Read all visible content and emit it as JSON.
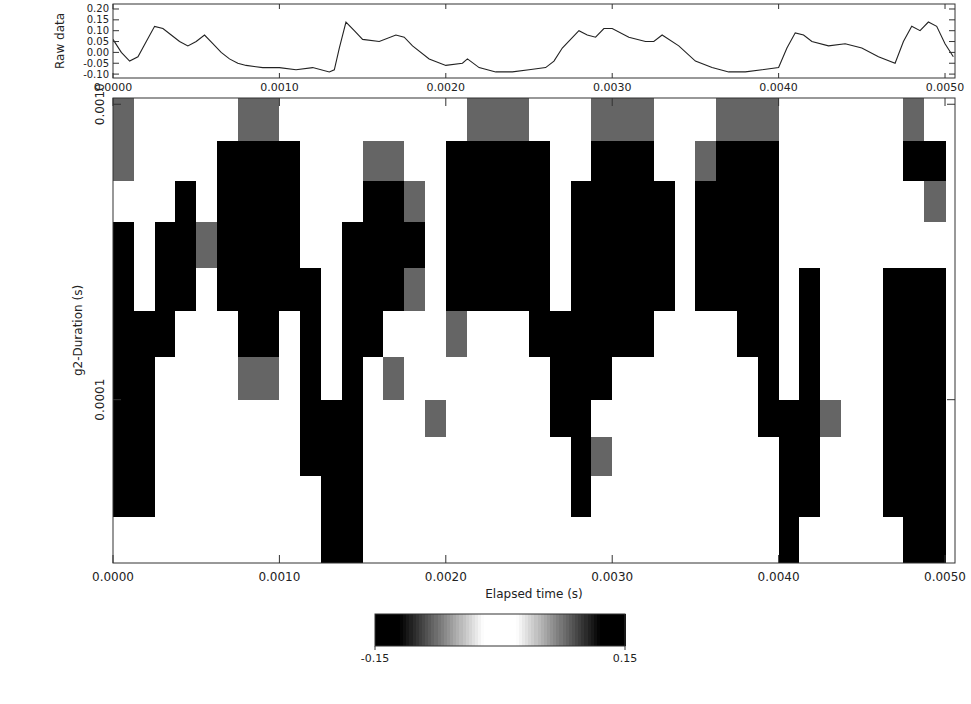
{
  "chart_data": [
    {
      "type": "line",
      "y_label": "Raw data",
      "color": "#222222",
      "xlim": [
        0,
        0.00506
      ],
      "ylim": [
        -0.118,
        0.223
      ],
      "xticks": [
        {
          "value": 0,
          "label": "0.0000"
        },
        {
          "value": 0.001,
          "label": "0.0010"
        },
        {
          "value": 0.002,
          "label": "0.0020"
        },
        {
          "value": 0.003,
          "label": "0.0030"
        },
        {
          "value": 0.004,
          "label": "0.0040"
        },
        {
          "value": 0.005,
          "label": "0.0050"
        }
      ],
      "yticks": [
        {
          "value": 0.2,
          "label": "0.20"
        },
        0.15,
        {
          "value": 0.1,
          "label": "0.10"
        },
        0.05,
        {
          "value": 0,
          "label": "0.00"
        },
        -0.05,
        {
          "value": -0.1,
          "label": "-0.10"
        }
      ],
      "x": [
        0,
        5e-05,
        0.0001,
        0.00015,
        0.0002,
        0.00025,
        0.0003,
        0.00035,
        0.0004,
        0.00045,
        0.0005,
        0.00055,
        0.0006,
        0.00065,
        0.0007,
        0.00075,
        0.0008,
        0.0009,
        0.001,
        0.0011,
        0.0012,
        0.0013,
        0.00133,
        0.00136,
        0.0014,
        0.00145,
        0.0015,
        0.0016,
        0.0017,
        0.00175,
        0.0018,
        0.0019,
        0.002,
        0.0021,
        0.00213,
        0.0022,
        0.0023,
        0.0024,
        0.0025,
        0.0026,
        0.00265,
        0.0027,
        0.0028,
        0.00285,
        0.0029,
        0.00295,
        0.003,
        0.0031,
        0.0032,
        0.00325,
        0.0033,
        0.0034,
        0.0035,
        0.0036,
        0.0037,
        0.0038,
        0.0039,
        0.004,
        0.00405,
        0.0041,
        0.00415,
        0.0042,
        0.0043,
        0.0044,
        0.0045,
        0.0046,
        0.0047,
        0.00475,
        0.0048,
        0.00485,
        0.0049,
        0.00495,
        0.005,
        0.00505
      ],
      "values": [
        0.06,
        0.0,
        -0.04,
        -0.02,
        0.05,
        0.12,
        0.11,
        0.08,
        0.05,
        0.03,
        0.05,
        0.08,
        0.04,
        0.0,
        -0.03,
        -0.05,
        -0.06,
        -0.07,
        -0.07,
        -0.08,
        -0.07,
        -0.09,
        -0.08,
        0.02,
        0.14,
        0.1,
        0.06,
        0.05,
        0.08,
        0.07,
        0.03,
        -0.03,
        -0.06,
        -0.05,
        -0.03,
        -0.07,
        -0.09,
        -0.09,
        -0.08,
        -0.07,
        -0.04,
        0.02,
        0.1,
        0.08,
        0.07,
        0.11,
        0.11,
        0.07,
        0.05,
        0.05,
        0.08,
        0.03,
        -0.04,
        -0.07,
        -0.09,
        -0.09,
        -0.08,
        -0.07,
        0.02,
        0.09,
        0.08,
        0.05,
        0.03,
        0.04,
        0.02,
        -0.02,
        -0.05,
        0.05,
        0.12,
        0.1,
        0.14,
        0.12,
        0.04,
        -0.02
      ]
    },
    {
      "type": "heatmap",
      "x_label": "Elapsed time (s)",
      "y_label": "g2-Duration (s)",
      "log": "y",
      "xlim": [
        0,
        0.00506
      ],
      "ylim": [
        2.8e-05,
        0.00105
      ],
      "xticks": [
        {
          "value": 0,
          "label": "0.0000"
        },
        {
          "value": 0.001,
          "label": "0.0010"
        },
        {
          "value": 0.002,
          "label": "0.0020"
        },
        {
          "value": 0.003,
          "label": "0.0030"
        },
        {
          "value": 0.004,
          "label": "0.0040"
        },
        {
          "value": 0.005,
          "label": "0.0050"
        }
      ],
      "yticks": [
        0.0001,
        {
          "value": 0.001,
          "label": "0.0010"
        }
      ],
      "x_edges": [
        0,
        0.000125,
        0.00025,
        0.000375,
        0.0005,
        0.000625,
        0.00075,
        0.000875,
        0.001,
        0.001125,
        0.00125,
        0.001375,
        0.0015,
        0.001625,
        0.00175,
        0.001875,
        0.002,
        0.002125,
        0.00225,
        0.002375,
        0.0025,
        0.002625,
        0.00275,
        0.002875,
        0.003,
        0.003125,
        0.00325,
        0.003375,
        0.0035,
        0.003625,
        0.00375,
        0.003875,
        0.004,
        0.004125,
        0.00425,
        0.004375,
        0.0045,
        0.004625,
        0.00475,
        0.004875,
        0.005
      ],
      "y_edges": [
        0.00105,
        0.00075,
        0.00055,
        0.0004,
        0.00028,
        0.0002,
        0.00014,
        0.0001,
        7.5e-05,
        5.5e-05,
        4e-05,
        2.8e-05
      ],
      "cells": [
        [
          0.08,
          0,
          0,
          0,
          0,
          0,
          -0.08,
          -0.08,
          0,
          0,
          0,
          0,
          0,
          0,
          0,
          0,
          0,
          -0.08,
          -0.08,
          -0.08,
          0,
          0,
          0,
          0.08,
          0.08,
          0.08,
          0,
          0,
          0,
          -0.08,
          -0.08,
          -0.08,
          0,
          0,
          0,
          0,
          0,
          0,
          0.08,
          0
        ],
        [
          0.08,
          0,
          0,
          0,
          0,
          -0.15,
          -0.15,
          -0.15,
          -0.15,
          0,
          0,
          0,
          0.08,
          0.08,
          0,
          0,
          -0.15,
          -0.15,
          -0.15,
          -0.15,
          -0.15,
          0,
          0,
          0.15,
          0.15,
          0.15,
          0,
          0,
          -0.08,
          -0.15,
          -0.15,
          -0.15,
          0,
          0,
          0,
          0,
          0,
          0,
          0.15,
          0.15
        ],
        [
          0,
          0,
          0,
          0.15,
          0,
          -0.15,
          -0.15,
          -0.15,
          -0.15,
          0,
          0,
          0,
          0.15,
          0.15,
          0.08,
          0,
          -0.15,
          -0.15,
          -0.15,
          -0.15,
          -0.15,
          0,
          0.15,
          0.15,
          0.15,
          0.15,
          0.15,
          0,
          -0.15,
          -0.15,
          -0.15,
          -0.15,
          0,
          0,
          0,
          0,
          0,
          0,
          0,
          0.08
        ],
        [
          -0.15,
          0,
          0.15,
          0.15,
          0.08,
          -0.15,
          -0.15,
          -0.15,
          -0.15,
          0,
          0,
          0.15,
          0.15,
          0.15,
          0.15,
          0,
          -0.15,
          -0.15,
          -0.15,
          -0.15,
          -0.15,
          0,
          0.15,
          0.15,
          0.15,
          0.15,
          0.15,
          0,
          -0.15,
          -0.15,
          -0.15,
          -0.15,
          0,
          0,
          0,
          0,
          0,
          0,
          0,
          0
        ],
        [
          -0.15,
          0,
          0.15,
          0.15,
          0,
          -0.15,
          -0.15,
          -0.15,
          -0.15,
          -0.15,
          0,
          0.15,
          0.15,
          0.15,
          0.08,
          0,
          -0.15,
          -0.15,
          -0.15,
          -0.15,
          -0.15,
          0,
          0.15,
          0.15,
          0.15,
          0.15,
          0.15,
          0,
          -0.15,
          -0.15,
          -0.15,
          -0.15,
          0,
          0.15,
          0,
          0,
          0,
          -0.15,
          0.15,
          -0.15
        ],
        [
          -0.15,
          0.15,
          0.15,
          0,
          0,
          0,
          -0.15,
          -0.15,
          0,
          -0.15,
          0,
          0.15,
          0.15,
          0,
          0,
          0,
          -0.08,
          0,
          0,
          0,
          -0.15,
          -0.15,
          0.15,
          0.15,
          0.15,
          0.15,
          0,
          0,
          0,
          0,
          -0.15,
          -0.15,
          0,
          0.15,
          0,
          0,
          0,
          -0.15,
          0.15,
          -0.15
        ],
        [
          -0.15,
          0.15,
          0,
          0,
          0,
          0,
          -0.08,
          -0.08,
          0,
          -0.15,
          0,
          0.15,
          0,
          0.08,
          0,
          0,
          0,
          0,
          0,
          0,
          0,
          -0.15,
          0.15,
          0.15,
          0,
          0,
          0,
          0,
          0,
          0,
          0,
          -0.15,
          0,
          0.15,
          0,
          0,
          0,
          -0.15,
          0.15,
          -0.15
        ],
        [
          -0.15,
          0.15,
          0,
          0,
          0,
          0,
          0,
          0,
          0,
          -0.15,
          -0.15,
          0.15,
          0,
          0,
          0,
          -0.08,
          0,
          0,
          0,
          0,
          0,
          -0.15,
          0.15,
          0,
          0,
          0,
          0,
          0,
          0,
          0,
          0,
          -0.15,
          -0.15,
          0.15,
          -0.08,
          0,
          0,
          -0.15,
          0.15,
          -0.15
        ],
        [
          -0.15,
          0.15,
          0,
          0,
          0,
          0,
          0,
          0,
          0,
          -0.15,
          -0.15,
          0.15,
          0,
          0,
          0,
          0,
          0,
          0,
          0,
          0,
          0,
          0,
          0.15,
          0.08,
          0,
          0,
          0,
          0,
          0,
          0,
          0,
          0,
          -0.15,
          0.15,
          0,
          0,
          0,
          -0.15,
          0.15,
          -0.15
        ],
        [
          -0.15,
          0.15,
          0,
          0,
          0,
          0,
          0,
          0,
          0,
          0,
          -0.15,
          0.15,
          0,
          0,
          0,
          0,
          0,
          0,
          0,
          0,
          0,
          0,
          0.15,
          0,
          0,
          0,
          0,
          0,
          0,
          0,
          0,
          0,
          -0.15,
          0.15,
          0,
          0,
          0,
          -0.15,
          0.15,
          -0.15
        ],
        [
          0,
          0,
          0,
          0,
          0,
          0,
          0,
          0,
          0,
          0,
          -0.15,
          0.15,
          0,
          0,
          0,
          0,
          0,
          0,
          0,
          0,
          0,
          0,
          0,
          0,
          0,
          0,
          0,
          0,
          0,
          0,
          0,
          0,
          -0.15,
          0,
          0,
          0,
          0,
          0,
          0.15,
          -0.15
        ]
      ],
      "colorbar": {
        "range": [
          -0.15,
          0.15
        ],
        "ticks": [
          -0.15,
          0.15
        ]
      }
    }
  ]
}
